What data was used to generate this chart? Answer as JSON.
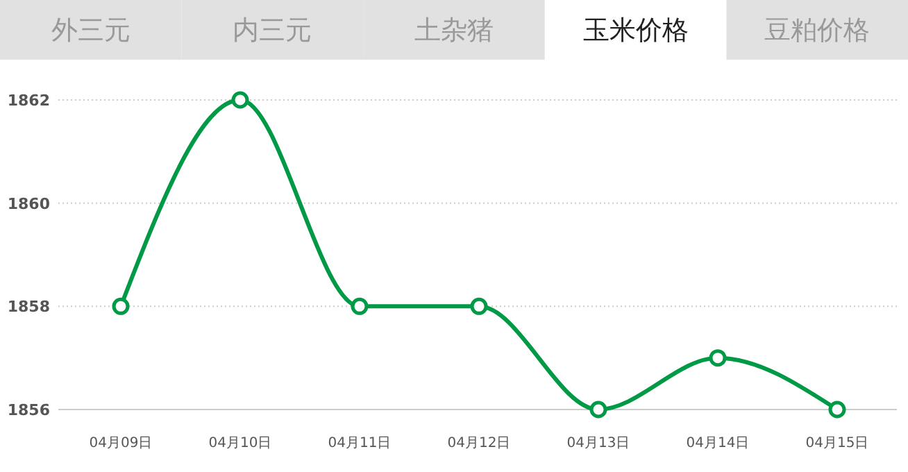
{
  "chart_data": {
    "type": "line",
    "title": "玉米价格",
    "annotations": [
      "外三元",
      "内三元",
      "土杂猪",
      "豆粕价格"
    ],
    "categories": [
      "04月09日",
      "04月10日",
      "04月11日",
      "04月12日",
      "04月13日",
      "04月14日",
      "04月15日"
    ],
    "series": [
      {
        "color": "#009a47",
        "values": [
          1858,
          1862,
          1858,
          1858,
          1856,
          1857,
          1856
        ]
      }
    ],
    "ylim": [
      1856,
      1862
    ],
    "yticks": [
      1856,
      1858,
      1860,
      1862
    ],
    "grid": "y",
    "marker": "circle",
    "line_style": "solid"
  }
}
